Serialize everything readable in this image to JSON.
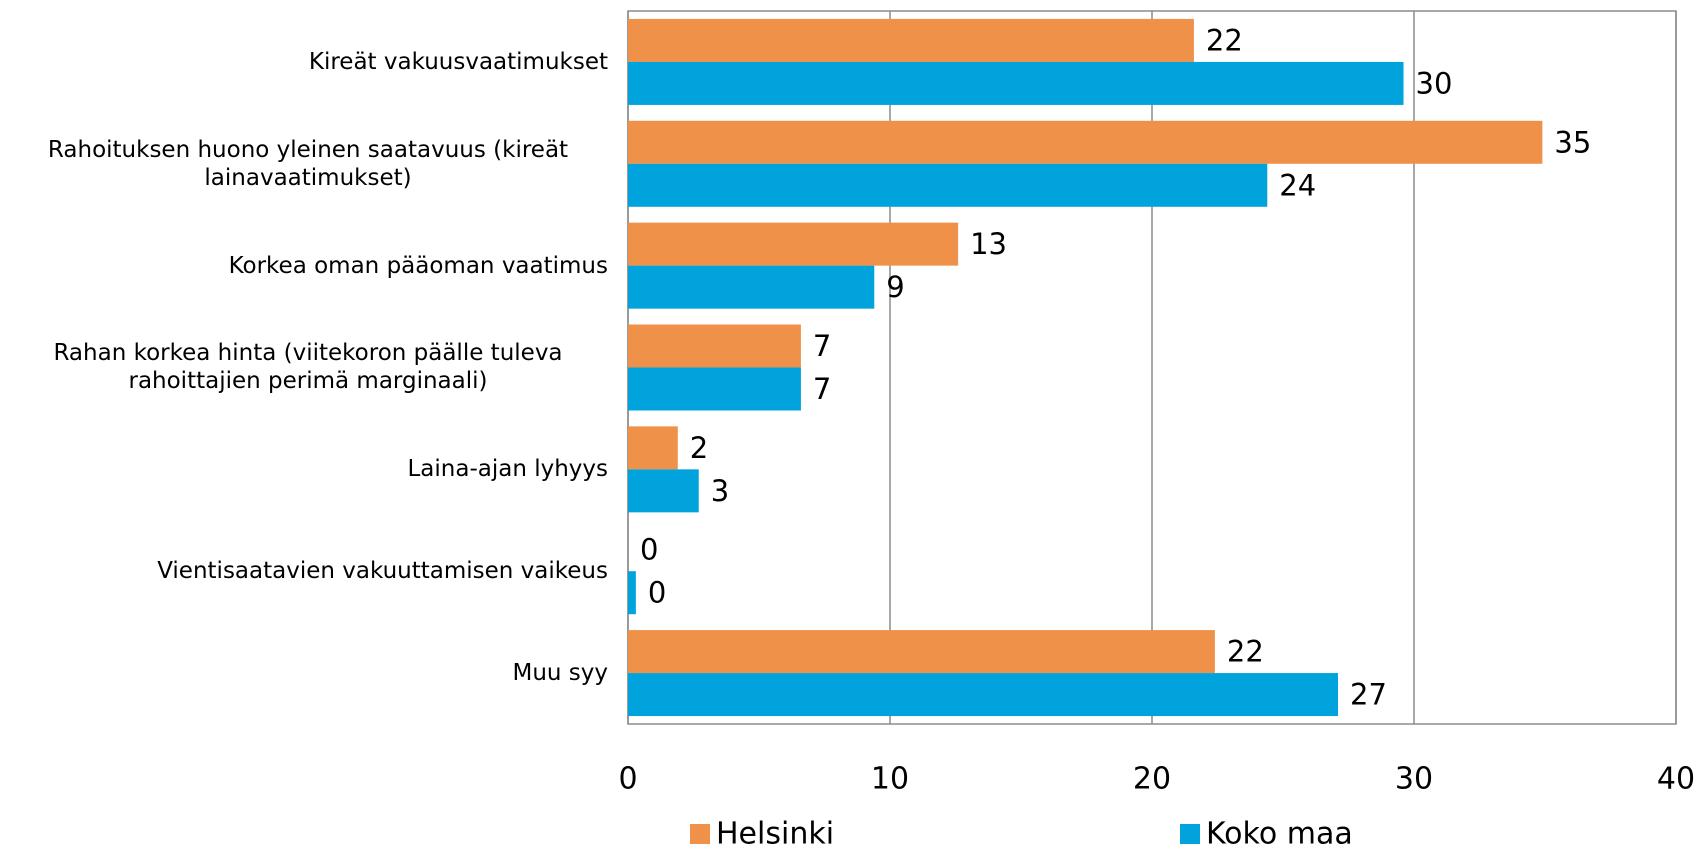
{
  "chart_data": {
    "type": "bar",
    "orientation": "horizontal",
    "categories": [
      "Kireät vakuusvaatimukset",
      "Rahoituksen huono yleinen saatavuus (kireät lainavaatimukset)",
      "Korkea oman pääoman vaatimus",
      "Rahan korkea hinta (viitekoron päälle tuleva rahoittajien perimä marginaali)",
      "Laina-ajan lyhyys",
      "Vientisaatavien vakuuttamisen vaikeus",
      "Muu syy"
    ],
    "series": [
      {
        "name": "Helsinki",
        "color": "#f0914a",
        "values": [
          21.6,
          34.9,
          12.6,
          6.6,
          1.9,
          0,
          22.4
        ],
        "value_labels": [
          "22",
          "35",
          "13",
          "7",
          "2",
          "0",
          "22"
        ]
      },
      {
        "name": "Koko maa",
        "color": "#00a3dc",
        "values": [
          29.6,
          24.4,
          9.4,
          6.6,
          2.7,
          0.3,
          27.1
        ],
        "value_labels": [
          "30",
          "24",
          "9",
          "7",
          "3",
          "0",
          "27"
        ]
      }
    ],
    "xlim": [
      0,
      40
    ],
    "xticks": [
      0,
      10,
      20,
      30,
      40
    ],
    "grid": true,
    "legend": "bottom"
  }
}
